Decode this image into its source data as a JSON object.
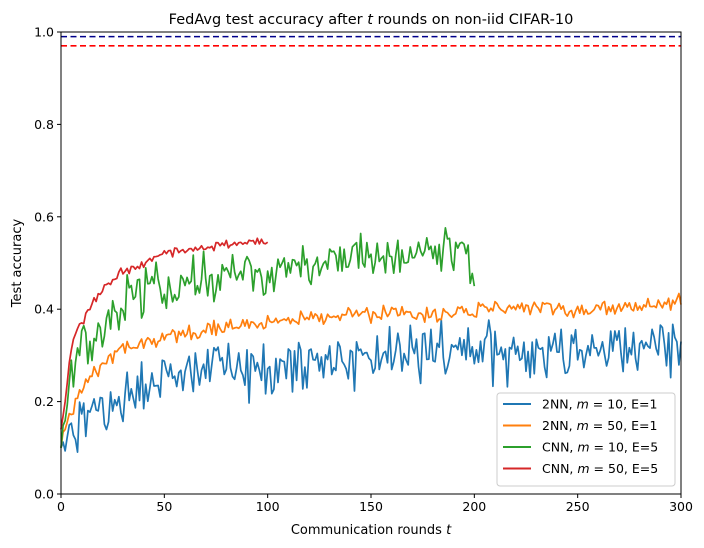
{
  "chart_data": {
    "type": "line",
    "title": {
      "pre": "FedAvg test accuracy after ",
      "var": "t",
      "post": " rounds on non-iid CIFAR-10"
    },
    "xlabel": {
      "pre": "Communication rounds ",
      "var": "t"
    },
    "ylabel": "Test accuracy",
    "xlim": [
      0,
      300
    ],
    "ylim": [
      0,
      1.0
    ],
    "xticks": [
      0,
      50,
      100,
      150,
      200,
      250,
      300
    ],
    "xtick_labels": [
      "0",
      "50",
      "100",
      "150",
      "200",
      "250",
      "300"
    ],
    "yticks": [
      0,
      0.2,
      0.4,
      0.6,
      0.8,
      1.0
    ],
    "ytick_labels": [
      "0.0",
      "0.2",
      "0.4",
      "0.6",
      "0.8",
      "1.0"
    ],
    "grid": false,
    "legend_position": "lower-right",
    "hlines": [
      {
        "y": 0.99,
        "color": "#00008b",
        "style": "dashed"
      },
      {
        "y": 0.97,
        "color": "#ff0000",
        "style": "dashed"
      }
    ],
    "series": [
      {
        "name": "2NN, m = 10, E=1",
        "label": {
          "pre": "2NN, ",
          "var": "m",
          "post": " = 10, E=1"
        },
        "color": "#1f77b4",
        "x": [
          0,
          2,
          5,
          8,
          12,
          15,
          18,
          22,
          26,
          30,
          35,
          40,
          45,
          50,
          55,
          60,
          70,
          80,
          90,
          100,
          110,
          120,
          130,
          140,
          150,
          160,
          170,
          180,
          190,
          200,
          210,
          220,
          230,
          240,
          250,
          260,
          270,
          280,
          290,
          295,
          300
        ],
        "y": [
          0.1,
          0.095,
          0.14,
          0.13,
          0.16,
          0.17,
          0.19,
          0.18,
          0.21,
          0.22,
          0.23,
          0.23,
          0.24,
          0.25,
          0.25,
          0.26,
          0.26,
          0.27,
          0.27,
          0.28,
          0.28,
          0.29,
          0.29,
          0.29,
          0.3,
          0.3,
          0.3,
          0.3,
          0.31,
          0.3,
          0.31,
          0.31,
          0.31,
          0.31,
          0.32,
          0.32,
          0.32,
          0.32,
          0.33,
          0.33,
          0.33
        ],
        "noise": 0.038
      },
      {
        "name": "2NN, m = 50, E=1",
        "label": {
          "pre": "2NN, ",
          "var": "m",
          "post": " = 50, E=1"
        },
        "color": "#ff7f0e",
        "x": [
          0,
          2,
          5,
          8,
          12,
          15,
          20,
          25,
          30,
          40,
          50,
          60,
          70,
          80,
          100,
          120,
          140,
          160,
          180,
          200,
          220,
          240,
          260,
          280,
          300
        ],
        "y": [
          0.1,
          0.14,
          0.18,
          0.21,
          0.24,
          0.26,
          0.28,
          0.3,
          0.31,
          0.33,
          0.34,
          0.35,
          0.36,
          0.36,
          0.37,
          0.38,
          0.385,
          0.39,
          0.39,
          0.395,
          0.4,
          0.4,
          0.4,
          0.405,
          0.41
        ],
        "noise": 0.011
      },
      {
        "name": "CNN, m = 10, E=5",
        "label": {
          "pre": "CNN, ",
          "var": "m",
          "post": " = 10, E=5"
        },
        "color": "#2ca02c",
        "x": [
          0,
          2,
          4,
          6,
          8,
          10,
          14,
          18,
          22,
          26,
          30,
          35,
          40,
          50,
          60,
          70,
          80,
          90,
          100,
          110,
          120,
          130,
          140,
          150,
          160,
          170,
          180,
          190,
          197,
          200
        ],
        "y": [
          0.1,
          0.16,
          0.22,
          0.27,
          0.3,
          0.31,
          0.33,
          0.36,
          0.38,
          0.4,
          0.41,
          0.42,
          0.44,
          0.45,
          0.46,
          0.47,
          0.475,
          0.48,
          0.485,
          0.49,
          0.495,
          0.5,
          0.505,
          0.51,
          0.51,
          0.515,
          0.52,
          0.52,
          0.52,
          0.45
        ],
        "noise": 0.032
      },
      {
        "name": "CNN, m = 50, E=5",
        "label": {
          "pre": "CNN, ",
          "var": "m",
          "post": " = 50, E=5"
        },
        "color": "#d62728",
        "x": [
          0,
          2,
          4,
          6,
          8,
          10,
          14,
          18,
          22,
          26,
          30,
          35,
          40,
          50,
          60,
          70,
          80,
          90,
          95,
          100
        ],
        "y": [
          0.14,
          0.2,
          0.28,
          0.34,
          0.36,
          0.37,
          0.4,
          0.43,
          0.45,
          0.47,
          0.48,
          0.49,
          0.5,
          0.52,
          0.53,
          0.535,
          0.54,
          0.545,
          0.55,
          0.545
        ],
        "noise": 0.006
      }
    ]
  }
}
